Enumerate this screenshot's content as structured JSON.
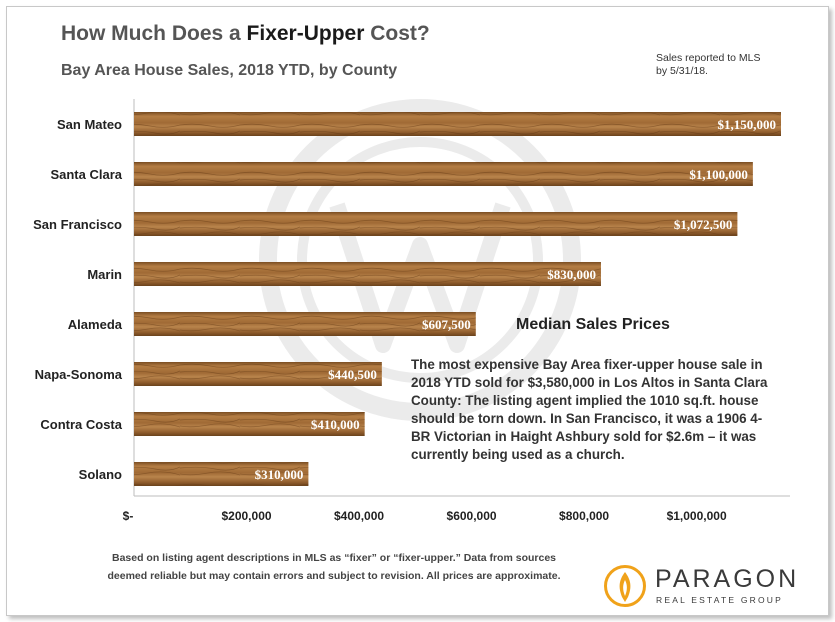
{
  "header": {
    "title_prefix": "How Much Does a ",
    "title_emphasis": "Fixer-Upper",
    "title_suffix": " Cost?",
    "subtitle": "Bay Area House Sales, 2018 YTD, by County",
    "note": "Sales reported to MLS by 5/31/18."
  },
  "chart_data": {
    "type": "bar",
    "orientation": "horizontal",
    "title": "Median Sales Prices",
    "categories": [
      "San Mateo",
      "Santa Clara",
      "San Francisco",
      "Marin",
      "Alameda",
      "Napa-Sonoma",
      "Contra Costa",
      "Solano"
    ],
    "values": [
      1150000,
      1100000,
      1072500,
      830000,
      607500,
      440500,
      410000,
      310000
    ],
    "data_labels": [
      "$1,150,000",
      "$1,100,000",
      "$1,072,500",
      "$830,000",
      "$607,500",
      "$440,500",
      "$410,000",
      "$310,000"
    ],
    "xlim": [
      0,
      1150000
    ],
    "xticks": [
      0,
      200000,
      400000,
      600000,
      800000,
      1000000
    ],
    "xtick_labels": [
      "$-",
      "$200,000",
      "$400,000",
      "$600,000",
      "$800,000",
      "$1,000,000"
    ],
    "xlabel": "",
    "ylabel": "",
    "grid": false,
    "bar_color": "#a9733d"
  },
  "callout": {
    "text": "The most expensive Bay Area fixer-upper house sale in 2018 YTD sold for $3,580,000 in Los Altos in Santa Clara County: The listing agent implied the 1010 sq.ft. house should be torn down. In San Francisco, it was a 1906 4-BR Victorian in Haight Ashbury sold for $2.6m – it was currently being used as a church."
  },
  "footnote": {
    "line1": "Based on listing agent descriptions in MLS as “fixer” or “fixer-upper.” Data from sources",
    "line2": "deemed reliable but may contain errors and subject to revision. All prices are approximate."
  },
  "logo": {
    "name": "PARAGON",
    "tagline": "REAL ESTATE GROUP",
    "icon": "flame-logo-icon"
  }
}
